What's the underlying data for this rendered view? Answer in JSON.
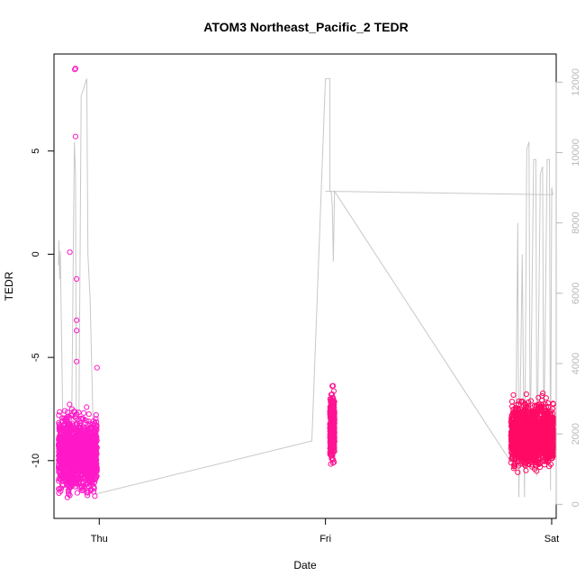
{
  "chart_data": {
    "type": "scatter",
    "title": "ATOM3 Northeast_Pacific_2 TEDR",
    "xlabel": "Date",
    "ylabel": "TEDR",
    "x_ticks": [
      "Thu",
      "Fri",
      "Sat"
    ],
    "x_range_days": [
      -0.2,
      2.02
    ],
    "y_ticks": [
      -10,
      -5,
      0,
      5
    ],
    "ylim": [
      -12.8,
      9.7
    ],
    "y2_ticks": [
      0,
      2000,
      4000,
      6000,
      8000,
      10000,
      12000
    ],
    "y2lim": [
      -400,
      12800
    ],
    "grid": false,
    "colors": {
      "thu_points": "#ff19c8",
      "fri_points": "#ff1493",
      "sat_points": "#ff0a64",
      "altitude_line": "#c8c8c8",
      "axis": "#000000",
      "right_axis": "#b8b8b8"
    },
    "series": [
      {
        "marker": "open-circle",
        "x_center": -0.17,
        "x_end": -0.01,
        "values_min": -12.3,
        "values_max": 9.0,
        "typical_range": [
          -11.8,
          -7.5
        ],
        "outliers": [
          [
            -0.105,
            9.0
          ],
          [
            -0.108,
            8.95
          ],
          [
            -0.13,
            0.1
          ],
          [
            -0.105,
            5.7
          ],
          [
            -0.1,
            -1.2
          ],
          [
            -0.1,
            -3.2
          ],
          [
            -0.1,
            -3.7
          ],
          [
            -0.1,
            -5.2
          ],
          [
            -0.01,
            -5.5
          ]
        ]
      },
      {
        "marker": "open-circle",
        "x_center": 1.03,
        "x_end": 1.04,
        "values_min": -11.0,
        "values_max": -5.6,
        "typical_range": [
          -10.2,
          -6.5
        ]
      },
      {
        "marker": "open-circle",
        "x_center": 1.88,
        "x_end": 2.01,
        "values_min": -11.2,
        "values_max": -5.8,
        "typical_range": [
          -10.5,
          -7.0
        ]
      }
    ],
    "altitude_line": {
      "axis": "right",
      "points": [
        [
          -0.18,
          6800
        ],
        [
          -0.178,
          7500
        ],
        [
          -0.175,
          6400
        ],
        [
          -0.172,
          7200
        ],
        [
          -0.16,
          1800
        ],
        [
          -0.14,
          1500
        ],
        [
          -0.13,
          2000
        ],
        [
          -0.125,
          200
        ],
        [
          -0.12,
          3500
        ],
        [
          -0.11,
          10300
        ],
        [
          -0.105,
          9400
        ],
        [
          -0.1,
          400
        ],
        [
          -0.09,
          2000
        ],
        [
          -0.08,
          11600
        ],
        [
          -0.06,
          12000
        ],
        [
          -0.055,
          12100
        ],
        [
          -0.05,
          7100
        ],
        [
          -0.04,
          5800
        ],
        [
          -0.02,
          300
        ],
        [
          -0.01,
          300
        ],
        [
          0.94,
          1800
        ],
        [
          1.0,
          12100
        ],
        [
          1.02,
          12100
        ],
        [
          1.02,
          8900
        ],
        [
          1.025,
          8900
        ],
        [
          1.03,
          8500
        ],
        [
          1.035,
          6900
        ],
        [
          1.04,
          8900
        ],
        [
          1.82,
          1200
        ],
        [
          1.84,
          1300
        ],
        [
          1.85,
          8000
        ],
        [
          1.855,
          200
        ],
        [
          1.87,
          7100
        ],
        [
          1.88,
          200
        ],
        [
          1.89,
          10100
        ],
        [
          1.9,
          10300
        ],
        [
          1.905,
          1500
        ],
        [
          1.92,
          9800
        ],
        [
          1.93,
          9800
        ],
        [
          1.935,
          800
        ],
        [
          1.95,
          9400
        ],
        [
          1.96,
          9600
        ],
        [
          1.965,
          1500
        ],
        [
          1.98,
          9800
        ],
        [
          1.99,
          9800
        ],
        [
          1.995,
          400
        ],
        [
          2.0,
          9000
        ],
        [
          2.005,
          8800
        ],
        [
          1.0,
          8900
        ]
      ]
    }
  }
}
